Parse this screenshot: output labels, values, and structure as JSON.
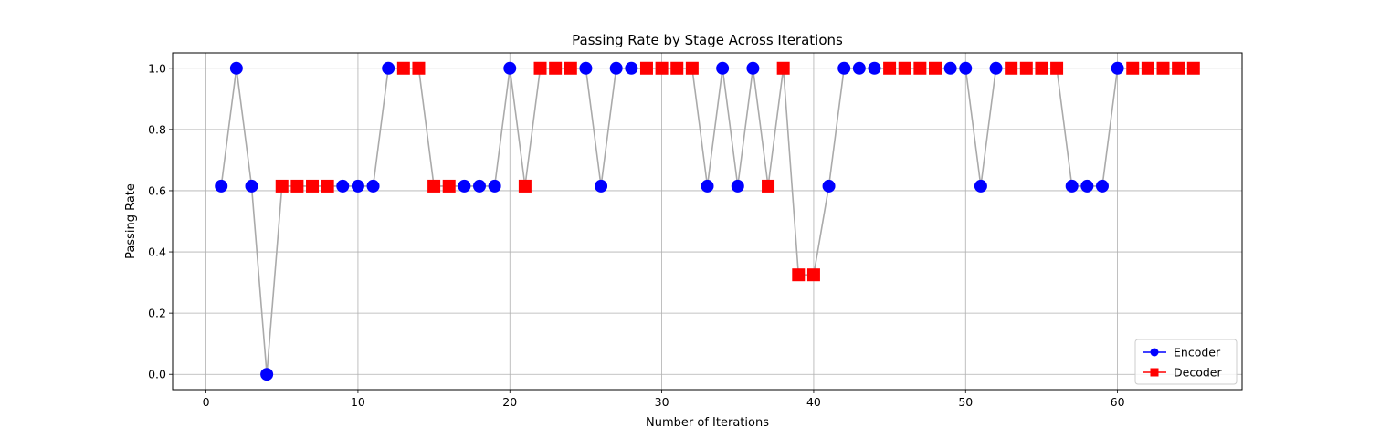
{
  "chart_data": {
    "type": "scatter",
    "title": "Passing Rate by Stage Across Iterations",
    "xlabel": "Number of Iterations",
    "ylabel": "Passing Rate",
    "xlim": [
      -2.2,
      68.2
    ],
    "ylim": [
      -0.05,
      1.05
    ],
    "xticks": [
      0,
      10,
      20,
      30,
      40,
      50,
      60
    ],
    "yticks": [
      0.0,
      0.2,
      0.4,
      0.6,
      0.8,
      1.0
    ],
    "xtick_labels": [
      "0",
      "10",
      "20",
      "30",
      "40",
      "50",
      "60"
    ],
    "ytick_labels": [
      "0.0",
      "0.2",
      "0.4",
      "0.6",
      "0.8",
      "1.0"
    ],
    "grid": true,
    "legend_position": "lower-right",
    "line_color": "#aaaaaa",
    "x": [
      1,
      2,
      3,
      4,
      5,
      6,
      7,
      8,
      9,
      10,
      11,
      12,
      13,
      14,
      15,
      16,
      17,
      18,
      19,
      20,
      21,
      22,
      23,
      24,
      25,
      26,
      27,
      28,
      29,
      30,
      31,
      32,
      33,
      34,
      35,
      36,
      37,
      38,
      39,
      40,
      41,
      42,
      43,
      44,
      45,
      46,
      47,
      48,
      49,
      50,
      51,
      52,
      53,
      54,
      55,
      56,
      57,
      58,
      59,
      60,
      61,
      62,
      63,
      64,
      65
    ],
    "y": [
      0.615,
      1.0,
      0.615,
      0.0,
      0.615,
      0.615,
      0.615,
      0.615,
      0.615,
      0.615,
      0.615,
      1.0,
      1.0,
      1.0,
      0.615,
      0.615,
      0.615,
      0.615,
      0.615,
      1.0,
      0.615,
      1.0,
      1.0,
      1.0,
      1.0,
      0.615,
      1.0,
      1.0,
      1.0,
      1.0,
      1.0,
      1.0,
      0.615,
      1.0,
      0.615,
      1.0,
      0.615,
      1.0,
      0.325,
      0.325,
      0.615,
      1.0,
      1.0,
      1.0,
      1.0,
      1.0,
      1.0,
      1.0,
      1.0,
      1.0,
      0.615,
      1.0,
      1.0,
      1.0,
      1.0,
      1.0,
      0.615,
      0.615,
      0.615,
      1.0,
      1.0,
      1.0,
      1.0,
      1.0,
      1.0
    ],
    "stage": [
      "E",
      "E",
      "E",
      "E",
      "D",
      "D",
      "D",
      "D",
      "E",
      "E",
      "E",
      "E",
      "D",
      "D",
      "D",
      "D",
      "E",
      "E",
      "E",
      "E",
      "D",
      "D",
      "D",
      "D",
      "E",
      "E",
      "E",
      "E",
      "D",
      "D",
      "D",
      "D",
      "E",
      "E",
      "E",
      "E",
      "D",
      "D",
      "D",
      "D",
      "E",
      "E",
      "E",
      "E",
      "D",
      "D",
      "D",
      "D",
      "E",
      "E",
      "E",
      "E",
      "D",
      "D",
      "D",
      "D",
      "E",
      "E",
      "E",
      "E",
      "D",
      "D",
      "D",
      "D",
      "D"
    ],
    "series": [
      {
        "name": "Encoder",
        "code": "E",
        "color": "#0000ff",
        "marker": "circle"
      },
      {
        "name": "Decoder",
        "code": "D",
        "color": "#ff0000",
        "marker": "square"
      }
    ]
  }
}
